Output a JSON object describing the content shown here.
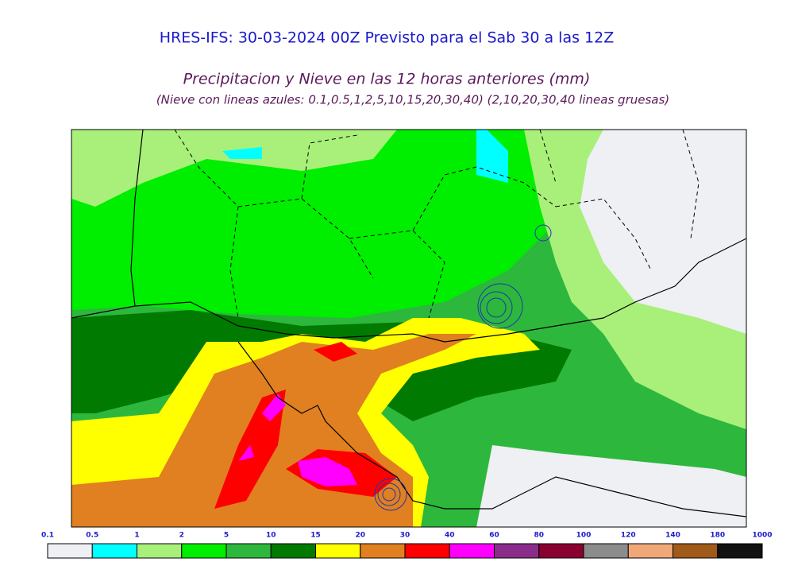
{
  "header": {
    "title": "HRES-IFS: 30-03-2024 00Z Previsto para el Sab 30 a las 12Z",
    "subtitle": "Precipitacion y Nieve en las 12 horas anteriores (mm)",
    "note": "(Nieve con lineas azules: 0.1,0.5,1,2,5,10,15,20,30,40)  (2,10,20,30,40 lineas gruesas)"
  },
  "colorbar": {
    "levels": [
      "0.1",
      "0.5",
      "1",
      "2",
      "5",
      "10",
      "15",
      "20",
      "30",
      "40",
      "60",
      "80",
      "100",
      "120",
      "140",
      "180",
      "1000"
    ],
    "colors": [
      "#eef0f4",
      "#00ffff",
      "#a8f07a",
      "#00ee00",
      "#2db83d",
      "#007a00",
      "#ffff00",
      "#e08020",
      "#ff0000",
      "#ff00ff",
      "#8a2c8a",
      "#8a0030",
      "#8c8c8c",
      "#f0a878",
      "#a05a1a",
      "#111111"
    ]
  }
}
